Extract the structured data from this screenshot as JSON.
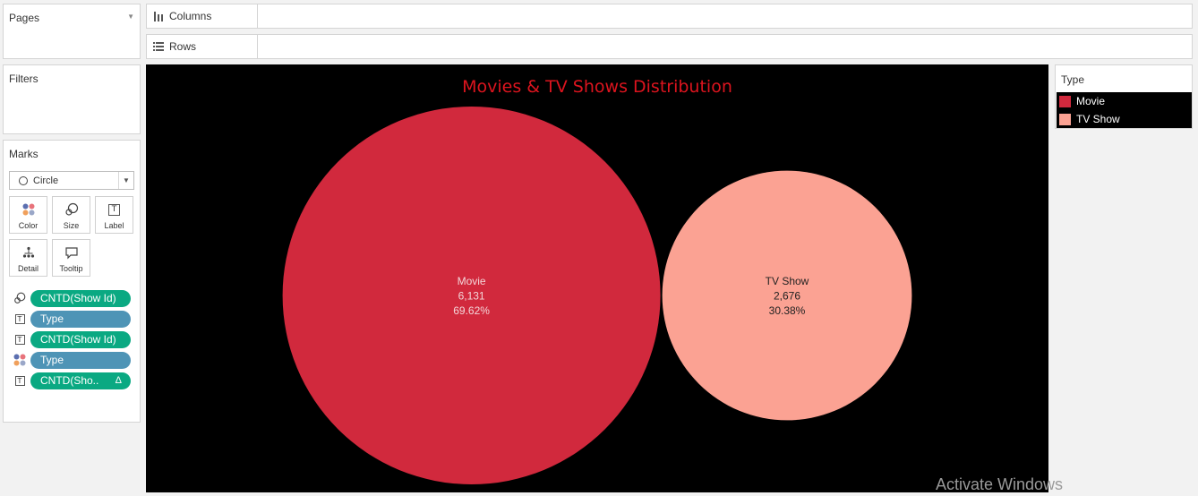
{
  "pages": {
    "title": "Pages"
  },
  "filters": {
    "title": "Filters"
  },
  "shelves": {
    "columns_label": "Columns",
    "rows_label": "Rows"
  },
  "marks": {
    "title": "Marks",
    "mark_type": "Circle",
    "buttons": [
      {
        "label": "Color",
        "icon": "color-dots-icon"
      },
      {
        "label": "Size",
        "icon": "size-circles-icon"
      },
      {
        "label": "Label",
        "icon": "text-label-icon"
      },
      {
        "label": "Detail",
        "icon": "detail-tree-icon"
      },
      {
        "label": "Tooltip",
        "icon": "tooltip-bubble-icon"
      }
    ],
    "pills": [
      {
        "text": "CNTD(Show Id)",
        "kind": "measure",
        "encoding": "size-icon"
      },
      {
        "text": "Type",
        "kind": "dimension",
        "encoding": "text-icon"
      },
      {
        "text": "CNTD(Show Id)",
        "kind": "measure",
        "encoding": "text-icon"
      },
      {
        "text": "Type",
        "kind": "dimension",
        "encoding": "color-icon"
      },
      {
        "text": "CNTD(Sho..",
        "kind": "measure",
        "encoding": "text-icon",
        "badge": "Δ"
      }
    ]
  },
  "legend": {
    "title": "Type",
    "items": [
      {
        "label": "Movie",
        "color": "#d1293d"
      },
      {
        "label": "TV Show",
        "color": "#fba293"
      }
    ]
  },
  "chart_data": {
    "type": "bubble",
    "title": "Movies & TV Shows Distribution",
    "title_color": "#dc141e",
    "background": "#000000",
    "series": [
      {
        "name": "Movie",
        "value": 6131,
        "value_label": "6,131",
        "percent_label": "69.62%",
        "color": "#d1293d"
      },
      {
        "name": "TV Show",
        "value": 2676,
        "value_label": "2,676",
        "percent_label": "30.38%",
        "color": "#fba293"
      }
    ]
  },
  "watermark": "Activate Windows"
}
